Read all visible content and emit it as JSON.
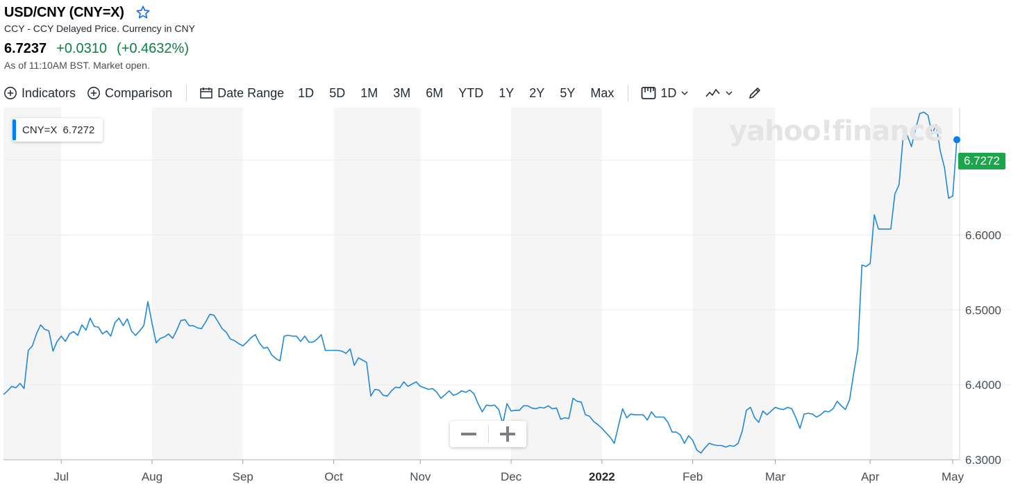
{
  "header": {
    "title": "USD/CNY (CNY=X)",
    "subtitle": "CCY - CCY Delayed Price. Currency in CNY",
    "price": "6.7237",
    "change": "+0.0310",
    "change_pct": "(+0.4632%)",
    "as_of": "As of 11:10AM BST. Market open."
  },
  "toolbar": {
    "indicators": "Indicators",
    "comparison": "Comparison",
    "date_range": "Date Range",
    "ranges": [
      "1D",
      "5D",
      "1M",
      "3M",
      "6M",
      "YTD",
      "1Y",
      "2Y",
      "5Y",
      "Max"
    ],
    "interval": "1D"
  },
  "legend": {
    "symbol": "CNY=X",
    "value": "6.7272"
  },
  "watermark": "yahoo!finance",
  "price_tag": "6.7272",
  "zoom": {
    "minus": "−",
    "plus": "+"
  },
  "colors": {
    "line": "#1e88d8",
    "up": "#0a8043",
    "tag": "#1ba64b",
    "band": "#f5f5f5",
    "accent": "#0081f2"
  },
  "chart_data": {
    "type": "line",
    "series_name": "CNY=X",
    "ylim": [
      6.3,
      6.77
    ],
    "y_ticks": [
      6.3,
      6.4,
      6.5,
      6.6,
      6.7
    ],
    "y_tick_labels": [
      "6.3000",
      "6.4000",
      "6.5000",
      "6.6000",
      "6.7000"
    ],
    "x_ticks": [
      {
        "label": "Jul",
        "bold": false,
        "idx": 14
      },
      {
        "label": "Aug",
        "bold": false,
        "idx": 36
      },
      {
        "label": "Sep",
        "bold": false,
        "idx": 58
      },
      {
        "label": "Oct",
        "bold": false,
        "idx": 80
      },
      {
        "label": "Nov",
        "bold": false,
        "idx": 101
      },
      {
        "label": "Dec",
        "bold": false,
        "idx": 123
      },
      {
        "label": "2022",
        "bold": true,
        "idx": 145
      },
      {
        "label": "Feb",
        "bold": false,
        "idx": 167
      },
      {
        "label": "Mar",
        "bold": false,
        "idx": 187
      },
      {
        "label": "Apr",
        "bold": false,
        "idx": 210
      },
      {
        "label": "May",
        "bold": false,
        "idx": 230
      }
    ],
    "values": [
      6.387,
      6.392,
      6.398,
      6.396,
      6.402,
      6.395,
      6.446,
      6.452,
      6.468,
      6.48,
      6.474,
      6.472,
      6.445,
      6.458,
      6.465,
      6.458,
      6.468,
      6.471,
      6.466,
      6.48,
      6.473,
      6.489,
      6.478,
      6.477,
      6.468,
      6.472,
      6.465,
      6.483,
      6.489,
      6.479,
      6.488,
      6.472,
      6.466,
      6.472,
      6.479,
      6.511,
      6.482,
      6.456,
      6.462,
      6.464,
      6.468,
      6.462,
      6.473,
      6.486,
      6.487,
      6.479,
      6.479,
      6.476,
      6.475,
      6.484,
      6.494,
      6.493,
      6.484,
      6.475,
      6.47,
      6.461,
      6.459,
      6.455,
      6.452,
      6.457,
      6.463,
      6.467,
      6.456,
      6.449,
      6.45,
      6.44,
      6.435,
      6.432,
      6.465,
      6.466,
      6.465,
      6.465,
      6.458,
      6.465,
      6.457,
      6.457,
      6.461,
      6.467,
      6.446,
      6.446,
      6.446,
      6.446,
      6.445,
      6.442,
      6.448,
      6.426,
      6.436,
      6.433,
      6.43,
      6.385,
      6.394,
      6.393,
      6.386,
      6.385,
      6.392,
      6.397,
      6.396,
      6.404,
      6.398,
      6.401,
      6.404,
      6.398,
      6.396,
      6.394,
      6.395,
      6.39,
      6.382,
      6.387,
      6.392,
      6.386,
      6.388,
      6.392,
      6.39,
      6.393,
      6.388,
      6.375,
      6.364,
      6.373,
      6.372,
      6.373,
      6.367,
      6.348,
      6.375,
      6.365,
      6.366,
      6.366,
      6.372,
      6.372,
      6.369,
      6.368,
      6.37,
      6.369,
      6.372,
      6.368,
      6.369,
      6.354,
      6.356,
      6.355,
      6.382,
      6.378,
      6.377,
      6.36,
      6.358,
      6.351,
      6.347,
      6.342,
      6.336,
      6.33,
      6.322,
      6.345,
      6.368,
      6.356,
      6.361,
      6.36,
      6.36,
      6.36,
      6.353,
      6.364,
      6.357,
      6.357,
      6.357,
      6.35,
      6.337,
      6.337,
      6.333,
      6.322,
      6.332,
      6.326,
      6.313,
      6.309,
      6.316,
      6.322,
      6.32,
      6.319,
      6.319,
      6.317,
      6.319,
      6.318,
      6.322,
      6.338,
      6.366,
      6.37,
      6.356,
      6.35,
      6.365,
      6.36,
      6.365,
      6.37,
      6.368,
      6.367,
      6.37,
      6.368,
      6.356,
      6.342,
      6.361,
      6.362,
      6.361,
      6.357,
      6.36,
      6.365,
      6.364,
      6.368,
      6.378,
      6.372,
      6.367,
      6.38,
      6.415,
      6.448,
      6.56,
      6.558,
      6.562,
      6.627,
      6.608,
      6.608,
      6.608,
      6.608,
      6.655,
      6.667,
      6.732,
      6.733,
      6.718,
      6.741,
      6.762,
      6.764,
      6.76,
      6.735,
      6.747,
      6.712,
      6.69,
      6.649,
      6.652,
      6.7272
    ]
  }
}
